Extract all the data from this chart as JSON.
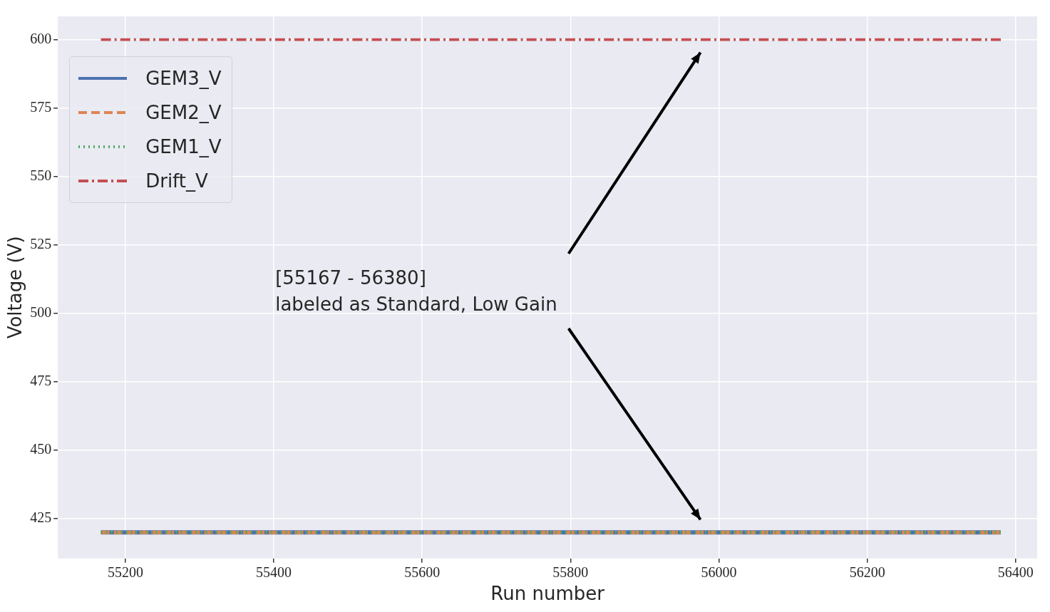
{
  "chart_data": {
    "type": "line",
    "xlabel": "Run number",
    "ylabel": "Voltage (V)",
    "xlim": [
      55109,
      56429
    ],
    "xticks": [
      55200,
      55400,
      55600,
      55800,
      56000,
      56200,
      56400
    ],
    "ylim": [
      410.5,
      608.5
    ],
    "yticks": [
      425,
      450,
      475,
      500,
      525,
      550,
      575,
      600
    ],
    "grid": true,
    "legend": "top left",
    "marker": "none",
    "x": [
      55167,
      56380
    ],
    "series": [
      {
        "name": "GEM3_V",
        "color": "#4c72b0",
        "line_style": "solid",
        "values": [
          420,
          420
        ]
      },
      {
        "name": "GEM2_V",
        "color": "#dd8452",
        "line_style": "dashed",
        "values": [
          420,
          420
        ]
      },
      {
        "name": "GEM1_V",
        "color": "#55a868",
        "line_style": "dotted",
        "values": [
          420,
          420
        ]
      },
      {
        "name": "Drift_V",
        "color": "#c44e52",
        "line_style": "dashdot",
        "values": [
          600,
          600
        ]
      }
    ],
    "annotations": [
      "[55167 - 56380]\nlabeled as Standard, Low Gain"
    ]
  }
}
